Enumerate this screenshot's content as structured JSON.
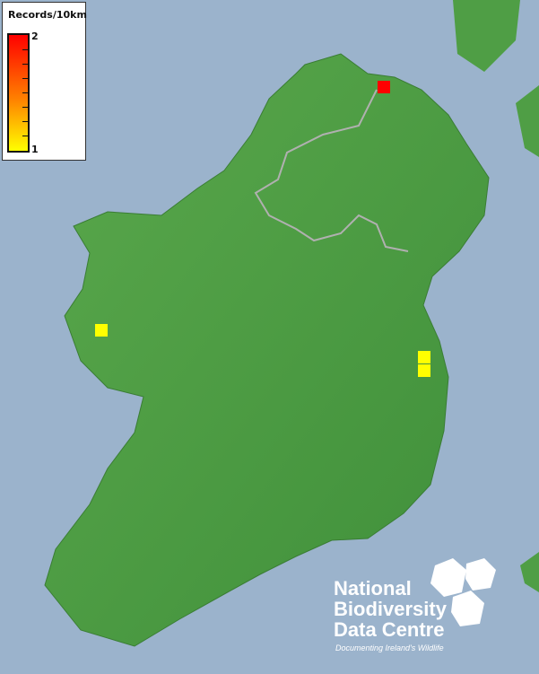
{
  "legend": {
    "title": "Records/10km",
    "max_label": "2",
    "min_label": "1",
    "color_max": "#ff0000",
    "color_min": "#ffff00"
  },
  "records": [
    {
      "count": 2,
      "color": "#ff0000"
    },
    {
      "count": 1,
      "color": "#ffff00"
    },
    {
      "count": 1,
      "color": "#ffff00"
    },
    {
      "count": 1,
      "color": "#ffff00"
    }
  ],
  "colors": {
    "sea": "#9bb3cc",
    "land": "#4f9e45",
    "border": "#b0b0b0"
  },
  "logo": {
    "line1": "National",
    "line2": "Biodiversity",
    "line3": "Data Centre",
    "tagline": "Documenting Ireland's Wildlife"
  }
}
